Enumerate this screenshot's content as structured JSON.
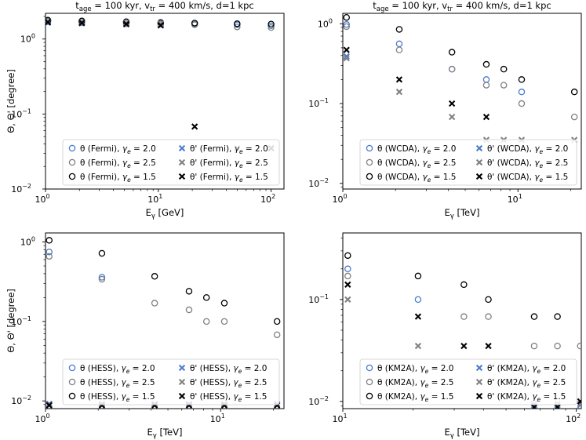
{
  "figure_title": "t_age = 100 kyr, v_tr = 400 km/s, d = 1 kpc",
  "colors": {
    "gamma_2_0": "#4a7bd0",
    "gamma_2_5": "#808080",
    "gamma_1_5": "#000000",
    "frame": "#000000"
  },
  "chart_data": [
    {
      "type": "scatter",
      "name": "fermi",
      "title": {
        "main": "t",
        "sub1": "age",
        "t1": " = 100 kyr, v",
        "sub2": "tr",
        "t2": " = 400 km/s, d=1 kpc"
      },
      "xlabel": {
        "main": "E",
        "sub": "γ",
        "unit": " [GeV]"
      },
      "ylabel": "Θ, Θ' [degree]",
      "xscale": "log",
      "yscale": "log",
      "xlim": [
        1,
        130
      ],
      "ylim": [
        0.01,
        2.2
      ],
      "xticks": [
        {
          "v": 1,
          "label": "10",
          "exp": "0"
        },
        {
          "v": 10,
          "label": "10",
          "exp": "1"
        },
        {
          "v": 100,
          "label": "10",
          "exp": "2"
        }
      ],
      "yticks": [
        {
          "v": 0.01,
          "label": "10",
          "exp": "−2"
        },
        {
          "v": 0.1,
          "label": "10",
          "exp": "−1"
        },
        {
          "v": 1,
          "label": "10",
          "exp": "0"
        }
      ],
      "legend_location": "lower-right",
      "series": [
        {
          "name": "θ (Fermi), γ_e = 2.0",
          "label": "θ (Fermi), ",
          "gamma": "γ",
          "gsub": "e",
          "gval": " = 2.0",
          "marker": "o",
          "color_key": "gamma_2_0",
          "x": [
            1.05,
            2.1,
            5.2,
            10.5,
            21,
            50,
            100
          ],
          "y": [
            1.75,
            1.72,
            1.68,
            1.62,
            1.58,
            1.55,
            1.5
          ]
        },
        {
          "name": "θ (Fermi), γ_e = 2.5",
          "label": "θ (Fermi), ",
          "gamma": "γ",
          "gsub": "e",
          "gval": " = 2.5",
          "marker": "o",
          "color_key": "gamma_2_5",
          "x": [
            1.05,
            2.1,
            5.2,
            10.5,
            21,
            50,
            100
          ],
          "y": [
            1.7,
            1.65,
            1.6,
            1.58,
            1.55,
            1.45,
            1.42
          ]
        },
        {
          "name": "θ (Fermi), γ_e = 1.5",
          "label": "θ (Fermi), ",
          "gamma": "γ",
          "gsub": "e",
          "gval": " = 1.5",
          "marker": "o",
          "color_key": "gamma_1_5",
          "x": [
            1.05,
            2.1,
            5.2,
            10.5,
            21,
            50,
            100
          ],
          "y": [
            1.78,
            1.74,
            1.7,
            1.66,
            1.63,
            1.6,
            1.58
          ]
        },
        {
          "name": "θ' (Fermi), γ_e = 2.0",
          "label": "θ' (Fermi), ",
          "gamma": "γ",
          "gsub": "e",
          "gval": " = 2.0",
          "marker": "x",
          "color_key": "gamma_2_0",
          "x": [
            1.05,
            2.1,
            5.2,
            10.5
          ],
          "y": [
            1.65,
            1.62,
            1.58,
            1.55
          ]
        },
        {
          "name": "θ' (Fermi), γ_e = 2.5",
          "label": "θ' (Fermi), ",
          "gamma": "γ",
          "gsub": "e",
          "gval": " = 2.5",
          "marker": "x",
          "color_key": "gamma_2_5",
          "x": [
            1.05,
            2.1,
            5.2,
            10.5,
            50
          ],
          "y": [
            1.7,
            1.66,
            1.62,
            1.6,
            0.035
          ]
        },
        {
          "name": "θ' (Fermi), γ_e = 1.5",
          "label": "θ' (Fermi), ",
          "gamma": "γ",
          "gsub": "e",
          "gval": " = 1.5",
          "marker": "x",
          "color_key": "gamma_1_5",
          "x": [
            1.05,
            2.1,
            5.2,
            10.5,
            21,
            100
          ],
          "y": [
            1.68,
            1.64,
            1.58,
            1.52,
            0.068,
            0.035
          ]
        }
      ]
    },
    {
      "type": "scatter",
      "name": "wcda",
      "title": {
        "main": "t",
        "sub1": "age",
        "t1": " = 100 kyr, v",
        "sub2": "tr",
        "t2": " = 400 km/s, d=1 kpc"
      },
      "xlabel": {
        "main": "E",
        "sub": "γ",
        "unit": " [TeV]"
      },
      "ylabel": "",
      "xscale": "log",
      "yscale": "log",
      "xlim": [
        1,
        23
      ],
      "ylim": [
        0.0085,
        1.35
      ],
      "xticks": [
        {
          "v": 1,
          "label": "10",
          "exp": "0"
        },
        {
          "v": 10,
          "label": "10",
          "exp": "1"
        }
      ],
      "yticks": [
        {
          "v": 0.01,
          "label": "10",
          "exp": "−2"
        },
        {
          "v": 0.1,
          "label": "10",
          "exp": "−1"
        },
        {
          "v": 1,
          "label": "10",
          "exp": "0"
        }
      ],
      "legend_location": "lower-right",
      "series": [
        {
          "name": "θ (WCDA), γ_e = 2.0",
          "label": "θ (WCDA), ",
          "gamma": "γ",
          "gsub": "e",
          "gval": " = 2.0",
          "marker": "o",
          "color_key": "gamma_2_0",
          "x": [
            1.05,
            2.1,
            4.2,
            6.6,
            10.5
          ],
          "y": [
            0.98,
            0.56,
            0.27,
            0.2,
            0.14
          ]
        },
        {
          "name": "θ (WCDA), γ_e = 2.5",
          "label": "θ (WCDA), ",
          "gamma": "γ",
          "gsub": "e",
          "gval": " = 2.5",
          "marker": "o",
          "color_key": "gamma_2_5",
          "x": [
            1.05,
            2.1,
            4.2,
            6.6,
            8.3,
            10.5,
            21
          ],
          "y": [
            0.92,
            0.47,
            0.27,
            0.17,
            0.17,
            0.1,
            0.068
          ]
        },
        {
          "name": "θ (WCDA), γ_e = 1.5",
          "label": "θ (WCDA), ",
          "gamma": "γ",
          "gsub": "e",
          "gval": " = 1.5",
          "marker": "o",
          "color_key": "gamma_1_5",
          "x": [
            1.05,
            2.1,
            4.2,
            6.6,
            8.3,
            10.5,
            21
          ],
          "y": [
            1.2,
            0.85,
            0.44,
            0.31,
            0.27,
            0.2,
            0.14
          ]
        },
        {
          "name": "θ' (WCDA), γ_e = 2.0",
          "label": "θ' (WCDA), ",
          "gamma": "γ",
          "gsub": "e",
          "gval": " = 2.0",
          "marker": "x",
          "color_key": "gamma_2_0",
          "x": [
            1.05
          ],
          "y": [
            0.39
          ]
        },
        {
          "name": "θ' (WCDA), γ_e = 2.5",
          "label": "θ' (WCDA), ",
          "gamma": "γ",
          "gsub": "e",
          "gval": " = 2.5",
          "marker": "x",
          "color_key": "gamma_2_5",
          "x": [
            1.05,
            2.1,
            4.2,
            6.6,
            8.3,
            10.5,
            21
          ],
          "y": [
            0.37,
            0.14,
            0.068,
            0.035,
            0.035,
            0.035,
            0.035
          ]
        },
        {
          "name": "θ' (WCDA), γ_e = 1.5",
          "label": "θ' (WCDA), ",
          "gamma": "γ",
          "gsub": "e",
          "gval": " = 1.5",
          "marker": "x",
          "color_key": "gamma_1_5",
          "x": [
            1.05,
            2.1,
            4.2,
            6.6
          ],
          "y": [
            0.47,
            0.2,
            0.1,
            0.068
          ]
        }
      ]
    },
    {
      "type": "scatter",
      "name": "hess",
      "title": null,
      "xlabel": {
        "main": "E",
        "sub": "γ",
        "unit": " [TeV]"
      },
      "ylabel": "Θ, Θ' [degree]",
      "xscale": "log",
      "yscale": "log",
      "xlim": [
        1,
        23
      ],
      "ylim": [
        0.008,
        1.3
      ],
      "xticks": [
        {
          "v": 1,
          "label": "10",
          "exp": "0"
        },
        {
          "v": 10,
          "label": "10",
          "exp": "1"
        }
      ],
      "yticks": [
        {
          "v": 0.01,
          "label": "10",
          "exp": "−2"
        },
        {
          "v": 0.1,
          "label": "10",
          "exp": "−1"
        },
        {
          "v": 1,
          "label": "10",
          "exp": "0"
        }
      ],
      "legend_location": "lower-right",
      "series": [
        {
          "name": "θ (HESS), γ_e = 2.0",
          "label": "θ (HESS), ",
          "gamma": "γ",
          "gsub": "e",
          "gval": " = 2.0",
          "marker": "o",
          "color_key": "gamma_2_0",
          "x": [
            1.05,
            2.1
          ],
          "y": [
            0.75,
            0.36
          ]
        },
        {
          "name": "θ (HESS), γ_e = 2.5",
          "label": "θ (HESS), ",
          "gamma": "γ",
          "gsub": "e",
          "gval": " = 2.5",
          "marker": "o",
          "color_key": "gamma_2_5",
          "x": [
            1.05,
            2.1,
            4.2,
            6.6,
            8.3,
            10.5,
            21
          ],
          "y": [
            0.66,
            0.34,
            0.17,
            0.14,
            0.1,
            0.1,
            0.068
          ]
        },
        {
          "name": "θ (HESS), γ_e = 1.5",
          "label": "θ (HESS), ",
          "gamma": "γ",
          "gsub": "e",
          "gval": " = 1.5",
          "marker": "o",
          "color_key": "gamma_1_5",
          "x": [
            1.05,
            2.1,
            4.2,
            6.6,
            8.3,
            10.5,
            21
          ],
          "y": [
            1.05,
            0.72,
            0.37,
            0.24,
            0.2,
            0.17,
            0.1
          ]
        },
        {
          "name": "θ' (HESS), γ_e = 2.0",
          "label": "θ' (HESS), ",
          "gamma": "γ",
          "gsub": "e",
          "gval": " = 2.0",
          "marker": "x",
          "color_key": "gamma_2_0",
          "x": [
            1.05,
            2.1,
            4.2,
            6.6,
            10.5,
            21
          ],
          "y": [
            0.0092,
            0.0092,
            0.0092,
            0.0092,
            0.0092,
            0.0092
          ]
        },
        {
          "name": "θ' (HESS), γ_e = 2.5",
          "label": "θ' (HESS), ",
          "gamma": "γ",
          "gsub": "e",
          "gval": " = 2.5",
          "marker": "x",
          "color_key": "gamma_2_5",
          "x": [
            1.05,
            2.1,
            4.2,
            6.6,
            10.5,
            21
          ],
          "y": [
            0.009,
            0.009,
            0.009,
            0.009,
            0.009,
            0.009
          ]
        },
        {
          "name": "θ' (HESS), γ_e = 1.5",
          "label": "θ' (HESS), ",
          "gamma": "γ",
          "gsub": "e",
          "gval": " = 1.5",
          "marker": "x",
          "color_key": "gamma_1_5",
          "x": [
            1.05,
            2.1,
            4.2,
            6.6,
            10.5,
            21
          ],
          "y": [
            0.0088,
            0.0088,
            0.0088,
            0.0088,
            0.0088,
            0.0088
          ]
        }
      ]
    },
    {
      "type": "scatter",
      "name": "km2a",
      "title": null,
      "xlabel": {
        "main": "E",
        "sub": "γ",
        "unit": " [TeV]"
      },
      "ylabel": "",
      "xscale": "log",
      "yscale": "log",
      "xlim": [
        10,
        105
      ],
      "ylim": [
        0.0085,
        0.45
      ],
      "xticks": [
        {
          "v": 10,
          "label": "10",
          "exp": "1"
        },
        {
          "v": 100,
          "label": "10",
          "exp": "2"
        }
      ],
      "yticks": [
        {
          "v": 0.01,
          "label": "10",
          "exp": "−2"
        },
        {
          "v": 0.1,
          "label": "10",
          "exp": "−1"
        }
      ],
      "legend_location": "lower-right",
      "series": [
        {
          "name": "θ (KM2A), γ_e = 2.0",
          "label": "θ (KM2A), ",
          "gamma": "γ",
          "gsub": "e",
          "gval": " = 2.0",
          "marker": "o",
          "color_key": "gamma_2_0",
          "x": [
            10.5,
            21
          ],
          "y": [
            0.2,
            0.1
          ]
        },
        {
          "name": "θ (KM2A), γ_e = 2.5",
          "label": "θ (KM2A), ",
          "gamma": "γ",
          "gsub": "e",
          "gval": " = 2.5",
          "marker": "o",
          "color_key": "gamma_2_5",
          "x": [
            10.5,
            33,
            42,
            66,
            83,
            104
          ],
          "y": [
            0.17,
            0.068,
            0.068,
            0.035,
            0.035,
            0.035
          ]
        },
        {
          "name": "θ (KM2A), γ_e = 1.5",
          "label": "θ (KM2A), ",
          "gamma": "γ",
          "gsub": "e",
          "gval": " = 1.5",
          "marker": "o",
          "color_key": "gamma_1_5",
          "x": [
            10.5,
            21,
            33,
            42,
            66,
            83
          ],
          "y": [
            0.27,
            0.17,
            0.14,
            0.1,
            0.068,
            0.068
          ]
        },
        {
          "name": "θ' (KM2A), γ_e = 2.0",
          "label": "θ' (KM2A), ",
          "gamma": "γ",
          "gsub": "e",
          "gval": " = 2.0",
          "marker": "x",
          "color_key": "gamma_2_0",
          "x": [
            66,
            83,
            104
          ],
          "y": [
            0.0092,
            0.0092,
            0.0092
          ]
        },
        {
          "name": "θ' (KM2A), γ_e = 2.5",
          "label": "θ' (KM2A), ",
          "gamma": "γ",
          "gsub": "e",
          "gval": " = 2.5",
          "marker": "x",
          "color_key": "gamma_2_5",
          "x": [
            10.5,
            21,
            66,
            83,
            104
          ],
          "y": [
            0.1,
            0.035,
            0.0095,
            0.0095,
            0.0095
          ]
        },
        {
          "name": "θ' (KM2A), γ_e = 1.5",
          "label": "θ' (KM2A), ",
          "gamma": "γ",
          "gsub": "e",
          "gval": " = 1.5",
          "marker": "x",
          "color_key": "gamma_1_5",
          "x": [
            10.5,
            21,
            33,
            42,
            66,
            83,
            104
          ],
          "y": [
            0.14,
            0.068,
            0.035,
            0.035,
            0.0088,
            0.0088,
            0.01
          ]
        }
      ]
    }
  ]
}
